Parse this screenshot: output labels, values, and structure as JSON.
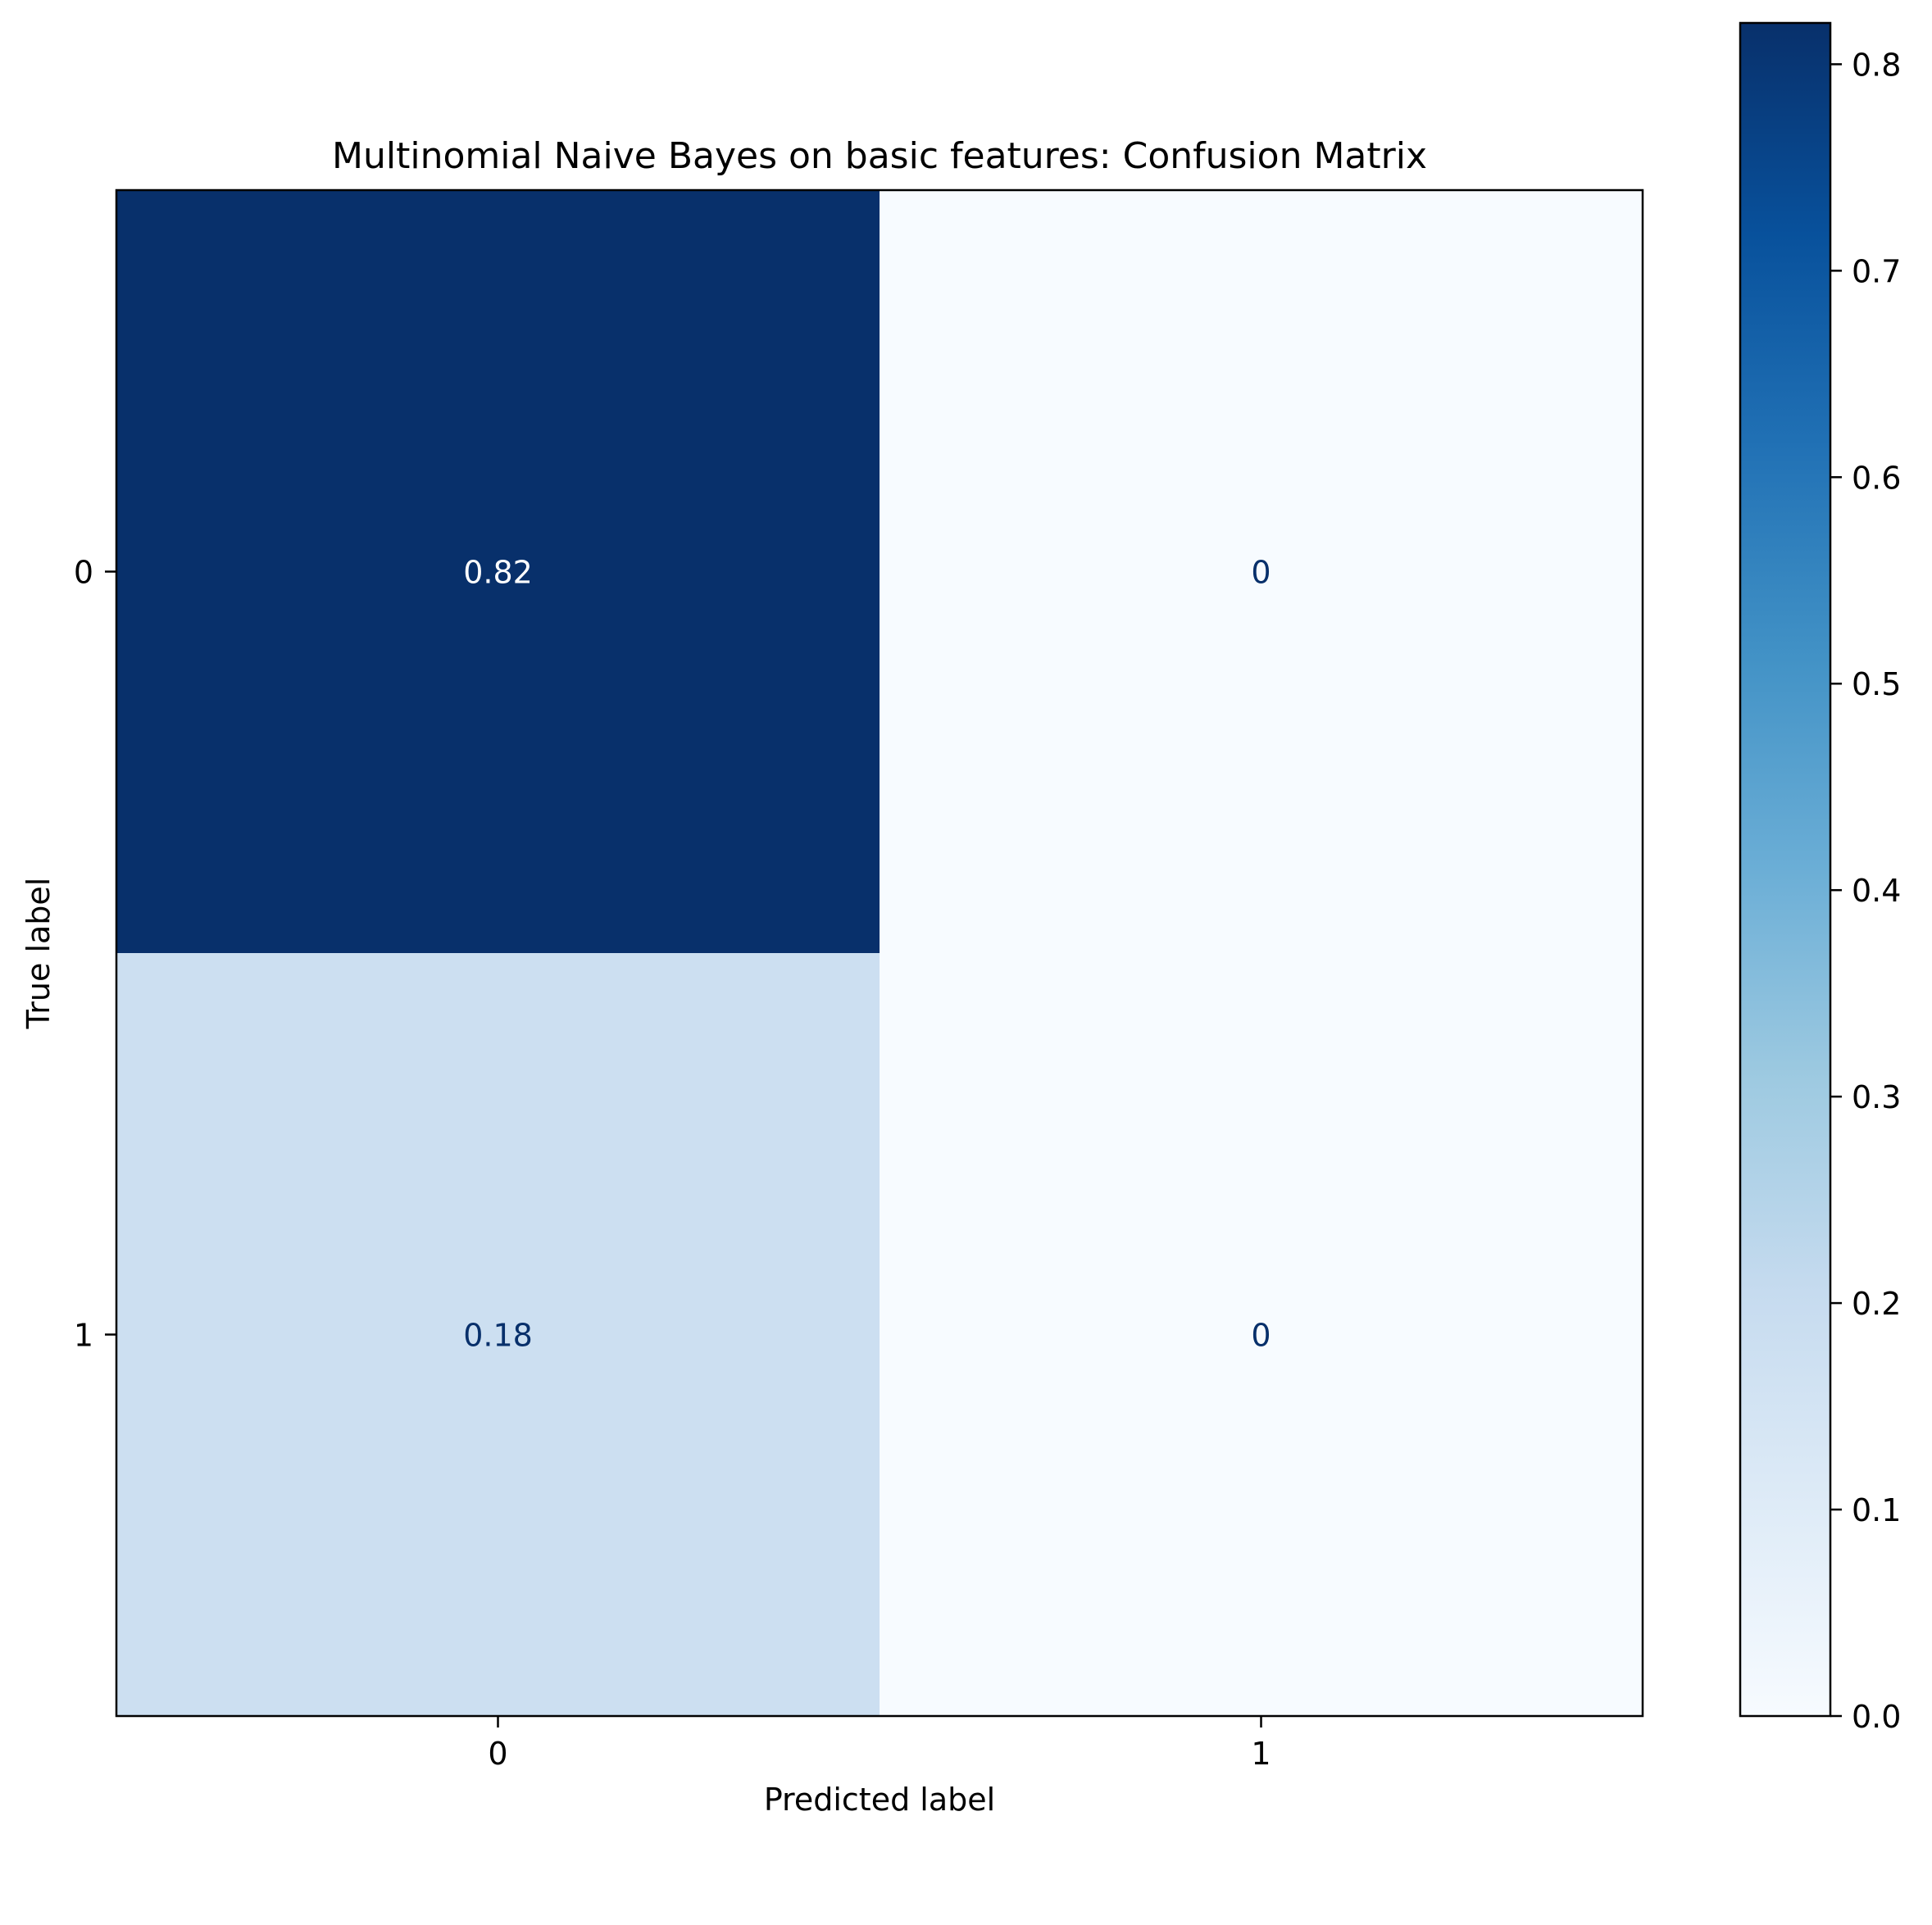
{
  "chart_data": {
    "type": "heatmap",
    "title": "Multinomial Naive Bayes on basic features: Confusion Matrix",
    "xlabel": "Predicted label",
    "ylabel": "True label",
    "x_categories": [
      "0",
      "1"
    ],
    "y_categories": [
      "0",
      "1"
    ],
    "values": [
      [
        0.82,
        0
      ],
      [
        0.18,
        0
      ]
    ],
    "cell_labels": [
      [
        "0.82",
        "0"
      ],
      [
        "0.18",
        "0"
      ]
    ],
    "colormap": "Blues",
    "colorbar": {
      "range": [
        0.0,
        0.82
      ],
      "ticks": [
        0.0,
        0.1,
        0.2,
        0.3,
        0.4,
        0.5,
        0.6,
        0.7,
        0.8
      ],
      "tick_labels": [
        "0.0",
        "0.1",
        "0.2",
        "0.3",
        "0.4",
        "0.5",
        "0.6",
        "0.7",
        "0.8"
      ]
    },
    "grid": false,
    "legend": "none",
    "colors": {
      "text_on_dark": "#ffffff",
      "text_on_light": "#08306b",
      "axis": "#000000"
    }
  }
}
